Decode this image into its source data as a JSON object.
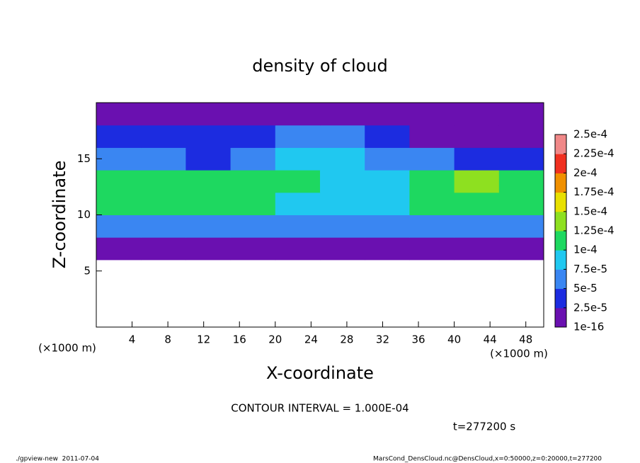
{
  "chart_data": {
    "type": "heatmap",
    "title": "density of cloud",
    "x_label": "X-coordinate",
    "y_label": "Z-coordinate",
    "x_unit": "(×1000 m)",
    "y_unit": "(×1000 m)",
    "x_edges": [
      0,
      5,
      10,
      15,
      20,
      25,
      30,
      35,
      40,
      45,
      50
    ],
    "y_edges": [
      0,
      2,
      4,
      6,
      8,
      10,
      12,
      14,
      16,
      18,
      20
    ],
    "values": [
      [
        null,
        null,
        null,
        null,
        null,
        null,
        null,
        null,
        null,
        null
      ],
      [
        null,
        null,
        null,
        null,
        null,
        null,
        null,
        null,
        null,
        null
      ],
      [
        null,
        null,
        null,
        null,
        null,
        null,
        null,
        null,
        null,
        null
      ],
      [
        1.5e-05,
        1.5e-05,
        1.5e-05,
        1.5e-05,
        1.5e-05,
        1.5e-05,
        1.5e-05,
        1.5e-05,
        1.5e-05,
        1.5e-05
      ],
      [
        5e-05,
        5e-05,
        5e-05,
        5e-05,
        5e-05,
        6e-05,
        6e-05,
        6e-05,
        5e-05,
        5e-05
      ],
      [
        0.00011,
        0.00011,
        0.00011,
        0.00011,
        9e-05,
        8e-05,
        8e-05,
        0.00011,
        0.00012,
        0.00011
      ],
      [
        0.00011,
        0.00011,
        0.00011,
        0.00012,
        0.00011,
        9e-05,
        9e-05,
        0.00012,
        0.00013,
        0.00012
      ],
      [
        5e-05,
        5e-05,
        4e-05,
        7e-05,
        8e-05,
        8e-05,
        7e-05,
        5e-05,
        4e-05,
        4e-05
      ],
      [
        3e-05,
        3e-05,
        3e-05,
        4e-05,
        6e-05,
        5e-05,
        3e-05,
        2e-05,
        2e-05,
        2e-05
      ],
      [
        1e-05,
        1e-05,
        5e-06,
        1e-05,
        1e-05,
        2e-05,
        1e-05,
        1e-05,
        1e-05,
        1e-05
      ]
    ],
    "xlim": [
      0,
      50
    ],
    "ylim": [
      0,
      20
    ],
    "xticks": [
      4,
      8,
      12,
      16,
      20,
      24,
      28,
      32,
      36,
      40,
      44,
      48
    ],
    "yticks": [
      5,
      10,
      15
    ],
    "levels": [
      {
        "value": 1e-16,
        "label": "1e-16"
      },
      {
        "value": 2.5e-05,
        "label": "2.5e-5"
      },
      {
        "value": 5e-05,
        "label": "5e-5"
      },
      {
        "value": 7.5e-05,
        "label": "7.5e-5"
      },
      {
        "value": 0.0001,
        "label": "1e-4"
      },
      {
        "value": 0.000125,
        "label": "1.25e-4"
      },
      {
        "value": 0.00015,
        "label": "1.5e-4"
      },
      {
        "value": 0.000175,
        "label": "1.75e-4"
      },
      {
        "value": 0.0002,
        "label": "2e-4"
      },
      {
        "value": 0.000225,
        "label": "2.25e-4"
      },
      {
        "value": 0.00025,
        "label": "2.5e-4"
      }
    ],
    "colors": [
      "#6a10b0",
      "#1c2ce0",
      "#3a86f2",
      "#20c8f0",
      "#1ed860",
      "#8ee020",
      "#e8e000",
      "#f09000",
      "#f03020",
      "#f08888"
    ],
    "contour_note": "CONTOUR INTERVAL = 1.000E-04",
    "time_note": "t=277200 s",
    "footer_left": "./gpview-new  2011-07-04",
    "footer_right": "MarsCond_DensCloud.nc@DensCloud,x=0:50000,z=0:20000,t=277200"
  }
}
